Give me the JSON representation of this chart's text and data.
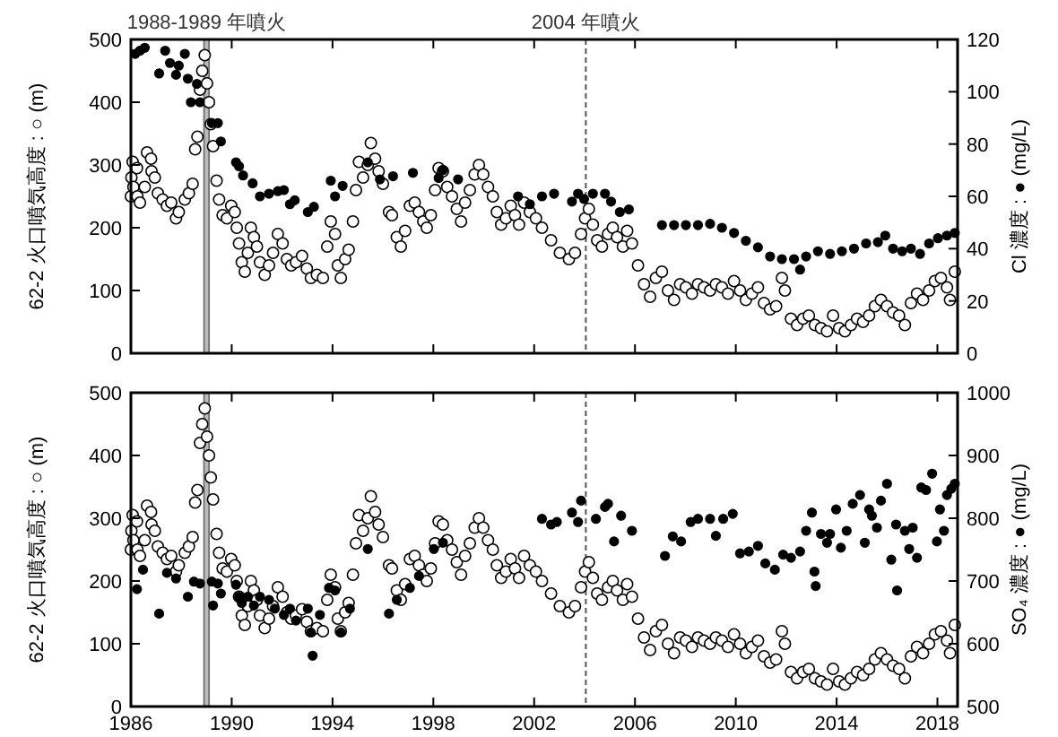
{
  "chart_data": [
    {
      "type": "scatter",
      "ylabel": "62-2 火口噴気高度 : ○ (m)",
      "y2label": "Cl 濃度 : ● (mg/L)",
      "xlim": [
        1986,
        2018.8
      ],
      "xticks": [
        1986,
        1990,
        1994,
        1998,
        2002,
        2006,
        2010,
        2014,
        2018
      ],
      "ylim": [
        0,
        500
      ],
      "yticks": [
        0,
        100,
        200,
        300,
        400,
        500
      ],
      "y2lim": [
        0,
        120
      ],
      "y2ticks": [
        0,
        20,
        40,
        60,
        80,
        100,
        120
      ],
      "tick_labels": "y",
      "marker": "circle",
      "bands": [
        {
          "axis": "x",
          "from": 1988.9,
          "to": 1989.1,
          "label": "1988-1989 年噴火",
          "color": "#bbbbbb"
        }
      ],
      "ref_lines": [
        {
          "axis": "x",
          "value": 2004.05,
          "label": "2004 年噴火",
          "line_style": "dashed",
          "color": "#555555"
        }
      ],
      "series": [
        {
          "color": "#ffffff",
          "x": [
            1986.0,
            1986.02,
            1986.07,
            1986.1,
            1986.24,
            1986.26,
            1986.36,
            1986.55,
            1986.64,
            1986.8,
            1986.82,
            1986.95,
            1987.07,
            1987.26,
            1987.43,
            1987.6,
            1987.79,
            1987.9,
            1988.14,
            1988.3,
            1988.45,
            1988.55,
            1988.64,
            1988.74,
            1988.83,
            1988.93,
            1989.02,
            1989.1,
            1989.17,
            1989.26,
            1989.4,
            1989.5,
            1989.64,
            1989.81,
            1989.98,
            1990.12,
            1990.2,
            1990.29,
            1990.4,
            1990.52,
            1990.64,
            1990.76,
            1990.88,
            1991.0,
            1991.12,
            1991.31,
            1991.48,
            1991.64,
            1991.83,
            1992.02,
            1992.19,
            1992.36,
            1992.55,
            1992.79,
            1992.98,
            1993.14,
            1993.38,
            1993.62,
            1993.79,
            1993.93,
            1994.1,
            1994.21,
            1994.33,
            1994.5,
            1994.64,
            1994.81,
            1994.93,
            1995.05,
            1995.21,
            1995.4,
            1995.52,
            1995.69,
            1995.83,
            1996.0,
            1996.24,
            1996.36,
            1996.55,
            1996.71,
            1996.88,
            1997.07,
            1997.26,
            1997.43,
            1997.6,
            1997.74,
            1997.9,
            1998.07,
            1998.21,
            1998.38,
            1998.55,
            1998.74,
            1998.93,
            1999.1,
            1999.26,
            1999.45,
            1999.64,
            1999.81,
            1999.98,
            2000.17,
            2000.36,
            2000.52,
            2000.69,
            2000.88,
            2001.07,
            2001.24,
            2001.4,
            2001.6,
            2001.83,
            2002.07,
            2002.31,
            2002.67,
            2003.02,
            2003.38,
            2003.62,
            2003.86,
            2004.02,
            2004.17,
            2004.33,
            2004.5,
            2004.69,
            2004.93,
            2005.12,
            2005.29,
            2005.52,
            2005.69,
            2005.88,
            2006.12,
            2006.36,
            2006.6,
            2006.83,
            2007.07,
            2007.31,
            2007.55,
            2007.79,
            2008.02,
            2008.26,
            2008.5,
            2008.74,
            2008.98,
            2009.21,
            2009.45,
            2009.69,
            2009.93,
            2010.17,
            2010.4,
            2010.64,
            2010.88,
            2011.12,
            2011.36,
            2011.6,
            2011.83,
            2011.95,
            2012.19,
            2012.43,
            2012.67,
            2012.9,
            2013.14,
            2013.38,
            2013.62,
            2013.86,
            2014.1,
            2014.33,
            2014.57,
            2014.81,
            2015.05,
            2015.29,
            2015.52,
            2015.76,
            2016.0,
            2016.24,
            2016.48,
            2016.71,
            2016.95,
            2017.19,
            2017.43,
            2017.67,
            2017.9,
            2018.14,
            2018.38,
            2018.5,
            2018.69
          ],
          "values": [
            250,
            280,
            305,
            265,
            295,
            250,
            240,
            265,
            320,
            310,
            290,
            280,
            255,
            245,
            235,
            240,
            215,
            225,
            245,
            255,
            270,
            325,
            345,
            420,
            450,
            475,
            430,
            400,
            365,
            330,
            275,
            245,
            220,
            215,
            235,
            225,
            200,
            175,
            145,
            130,
            160,
            200,
            185,
            170,
            145,
            125,
            140,
            160,
            190,
            175,
            150,
            140,
            145,
            155,
            135,
            120,
            125,
            120,
            170,
            210,
            190,
            140,
            120,
            150,
            165,
            210,
            260,
            305,
            280,
            300,
            335,
            310,
            290,
            270,
            225,
            220,
            185,
            170,
            195,
            235,
            240,
            225,
            210,
            200,
            220,
            260,
            295,
            290,
            265,
            250,
            230,
            210,
            240,
            260,
            285,
            300,
            285,
            265,
            250,
            225,
            205,
            215,
            235,
            220,
            205,
            240,
            225,
            215,
            200,
            180,
            160,
            150,
            160,
            190,
            215,
            230,
            205,
            180,
            170,
            190,
            200,
            185,
            170,
            195,
            175,
            140,
            110,
            90,
            120,
            130,
            100,
            85,
            110,
            105,
            95,
            110,
            105,
            100,
            110,
            105,
            95,
            115,
            100,
            85,
            95,
            105,
            80,
            70,
            75,
            120,
            100,
            55,
            45,
            55,
            60,
            45,
            40,
            35,
            60,
            40,
            35,
            45,
            55,
            50,
            60,
            75,
            85,
            75,
            65,
            60,
            45,
            80,
            95,
            85,
            100,
            115,
            120,
            105,
            85,
            130
          ]
        },
        {
          "color": "#000000",
          "axis": "y2",
          "x": [
            1986.17,
            1986.36,
            1986.55,
            1987.12,
            1987.36,
            1987.55,
            1987.79,
            1987.9,
            1988.14,
            1988.26,
            1988.38,
            1988.62,
            1988.74,
            1989.21,
            1989.45,
            1989.57,
            1990.17,
            1990.29,
            1990.45,
            1990.83,
            1991.12,
            1991.48,
            1991.83,
            1992.07,
            1992.31,
            1992.5,
            1993.02,
            1993.26,
            1993.93,
            1994.1,
            1994.4,
            1995.4,
            1995.88,
            1996.4,
            1997.19,
            1998.21,
            1998.38,
            1998.98,
            2001.36,
            2001.83,
            2002.31,
            2002.79,
            2003.5,
            2003.74,
            2003.98,
            2004.33,
            2004.81,
            2005.05,
            2005.4,
            2005.76,
            2007.07,
            2007.55,
            2008.02,
            2008.5,
            2008.98,
            2009.45,
            2009.93,
            2010.4,
            2010.88,
            2011.36,
            2011.83,
            2012.31,
            2012.55,
            2012.79,
            2013.26,
            2013.74,
            2014.21,
            2014.69,
            2015.17,
            2015.64,
            2015.93,
            2016.24,
            2016.6,
            2016.95,
            2017.31,
            2017.67,
            2018.02,
            2018.38,
            2018.69
          ],
          "values": [
            114.5,
            115.7,
            116.8,
            107,
            115.7,
            111,
            106.5,
            110,
            114.5,
            105,
            96,
            103,
            96,
            88,
            88,
            81,
            73,
            71.5,
            68,
            65,
            60,
            61,
            62,
            62.4,
            57,
            58.5,
            54,
            56,
            66,
            60,
            64,
            73,
            66.5,
            67.7,
            69,
            67,
            70,
            66.5,
            60,
            57,
            60,
            61,
            58,
            61,
            59,
            61,
            61,
            58,
            54,
            55,
            49,
            49,
            49,
            49,
            49.5,
            48,
            46,
            43,
            40.5,
            37,
            36,
            36,
            32,
            37,
            39,
            38,
            39,
            40,
            42,
            42.5,
            45,
            40,
            39,
            40,
            38,
            42,
            44,
            45,
            46
          ]
        }
      ]
    },
    {
      "type": "scatter",
      "ylabel": "62-2 火口噴気高度 : ○ (m)",
      "y2label": "SO₄ 濃度 : ● (mg/L)",
      "xlim": [
        1986,
        2018.8
      ],
      "xticks": [
        1986,
        1990,
        1994,
        1998,
        2002,
        2006,
        2010,
        2014,
        2018
      ],
      "ylim": [
        0,
        500
      ],
      "yticks": [
        0,
        100,
        200,
        300,
        400,
        500
      ],
      "y2lim": [
        500,
        1000
      ],
      "y2ticks": [
        500,
        600,
        700,
        800,
        900,
        1000
      ],
      "marker": "circle",
      "bands": [
        {
          "axis": "x",
          "from": 1988.9,
          "to": 1989.1,
          "color": "#bbbbbb"
        }
      ],
      "ref_lines": [
        {
          "axis": "x",
          "value": 2004.05,
          "line_style": "dashed",
          "color": "#555555"
        }
      ],
      "series": [
        {
          "color": "#ffffff",
          "x": [
            1986.0,
            1986.02,
            1986.07,
            1986.1,
            1986.24,
            1986.26,
            1986.36,
            1986.55,
            1986.64,
            1986.8,
            1986.82,
            1986.95,
            1987.07,
            1987.26,
            1987.43,
            1987.6,
            1987.79,
            1987.9,
            1988.14,
            1988.3,
            1988.45,
            1988.55,
            1988.64,
            1988.74,
            1988.83,
            1988.93,
            1989.02,
            1989.1,
            1989.17,
            1989.26,
            1989.4,
            1989.5,
            1989.64,
            1989.81,
            1989.98,
            1990.12,
            1990.2,
            1990.29,
            1990.4,
            1990.52,
            1990.64,
            1990.76,
            1990.88,
            1991.0,
            1991.12,
            1991.31,
            1991.48,
            1991.64,
            1991.83,
            1992.02,
            1992.19,
            1992.36,
            1992.55,
            1992.79,
            1992.98,
            1993.14,
            1993.38,
            1993.62,
            1993.79,
            1993.93,
            1994.1,
            1994.21,
            1994.33,
            1994.5,
            1994.64,
            1994.81,
            1994.93,
            1995.05,
            1995.21,
            1995.4,
            1995.52,
            1995.69,
            1995.83,
            1996.0,
            1996.24,
            1996.36,
            1996.55,
            1996.71,
            1996.88,
            1997.07,
            1997.26,
            1997.43,
            1997.6,
            1997.74,
            1997.9,
            1998.07,
            1998.21,
            1998.38,
            1998.55,
            1998.74,
            1998.93,
            1999.1,
            1999.26,
            1999.45,
            1999.64,
            1999.81,
            1999.98,
            2000.17,
            2000.36,
            2000.52,
            2000.69,
            2000.88,
            2001.07,
            2001.24,
            2001.4,
            2001.6,
            2001.83,
            2002.07,
            2002.31,
            2002.67,
            2003.02,
            2003.38,
            2003.62,
            2003.86,
            2004.02,
            2004.17,
            2004.33,
            2004.5,
            2004.69,
            2004.93,
            2005.12,
            2005.29,
            2005.52,
            2005.69,
            2005.88,
            2006.12,
            2006.36,
            2006.6,
            2006.83,
            2007.07,
            2007.31,
            2007.55,
            2007.79,
            2008.02,
            2008.26,
            2008.5,
            2008.74,
            2008.98,
            2009.21,
            2009.45,
            2009.69,
            2009.93,
            2010.17,
            2010.4,
            2010.64,
            2010.88,
            2011.12,
            2011.36,
            2011.6,
            2011.83,
            2011.95,
            2012.19,
            2012.43,
            2012.67,
            2012.9,
            2013.14,
            2013.38,
            2013.62,
            2013.86,
            2014.1,
            2014.33,
            2014.57,
            2014.81,
            2015.05,
            2015.29,
            2015.52,
            2015.76,
            2016.0,
            2016.24,
            2016.48,
            2016.71,
            2016.95,
            2017.19,
            2017.43,
            2017.67,
            2017.9,
            2018.14,
            2018.38,
            2018.5,
            2018.69
          ],
          "values": [
            250,
            280,
            305,
            265,
            295,
            250,
            240,
            265,
            320,
            310,
            290,
            280,
            255,
            245,
            235,
            240,
            215,
            225,
            245,
            255,
            270,
            325,
            345,
            420,
            450,
            475,
            430,
            400,
            365,
            330,
            275,
            245,
            220,
            215,
            235,
            225,
            200,
            175,
            145,
            130,
            160,
            200,
            185,
            170,
            145,
            125,
            140,
            160,
            190,
            175,
            150,
            140,
            145,
            155,
            135,
            120,
            125,
            120,
            170,
            210,
            190,
            140,
            120,
            150,
            165,
            210,
            260,
            305,
            280,
            300,
            335,
            310,
            290,
            270,
            225,
            220,
            185,
            170,
            195,
            235,
            240,
            225,
            210,
            200,
            220,
            260,
            295,
            290,
            265,
            250,
            230,
            210,
            240,
            260,
            285,
            300,
            285,
            265,
            250,
            225,
            205,
            215,
            235,
            220,
            205,
            240,
            225,
            215,
            200,
            180,
            160,
            150,
            160,
            190,
            215,
            230,
            205,
            180,
            170,
            190,
            200,
            185,
            170,
            195,
            175,
            140,
            110,
            90,
            120,
            130,
            100,
            85,
            110,
            105,
            95,
            110,
            105,
            100,
            110,
            105,
            95,
            115,
            100,
            85,
            95,
            105,
            80,
            70,
            75,
            120,
            100,
            55,
            45,
            55,
            60,
            45,
            40,
            35,
            60,
            40,
            35,
            45,
            55,
            50,
            60,
            75,
            85,
            75,
            65,
            60,
            45,
            80,
            95,
            85,
            100,
            115,
            120,
            105,
            85,
            130
          ]
        },
        {
          "color": "#000000",
          "axis": "y2",
          "x": [
            1986.24,
            1986.48,
            1987.12,
            1987.43,
            1987.79,
            1988.26,
            1988.5,
            1988.74,
            1989.21,
            1989.26,
            1989.45,
            1989.57,
            1990.17,
            1990.29,
            1990.4,
            1990.64,
            1990.88,
            1991.12,
            1991.48,
            1991.71,
            1992.07,
            1992.31,
            1992.55,
            1993.02,
            1993.14,
            1993.21,
            1993.5,
            1993.86,
            1994.1,
            1994.33,
            1994.69,
            1995.4,
            1996.24,
            1996.55,
            1997.07,
            1997.43,
            1998.02,
            1998.38,
            2002.31,
            2002.67,
            2002.9,
            2003.5,
            2003.74,
            2003.86,
            2004.45,
            2004.81,
            2004.93,
            2005.17,
            2005.45,
            2005.88,
            2007.19,
            2007.5,
            2007.83,
            2008.21,
            2008.5,
            2008.98,
            2009.21,
            2009.5,
            2009.88,
            2010.17,
            2010.52,
            2010.88,
            2011.17,
            2011.55,
            2011.88,
            2012.19,
            2012.55,
            2012.79,
            2013.02,
            2013.12,
            2013.17,
            2013.38,
            2013.62,
            2013.74,
            2013.98,
            2014.17,
            2014.4,
            2014.64,
            2014.93,
            2015.12,
            2015.29,
            2015.4,
            2015.6,
            2015.76,
            2016.0,
            2016.17,
            2016.36,
            2016.4,
            2016.71,
            2016.88,
            2017.02,
            2017.19,
            2017.36,
            2017.55,
            2017.79,
            2017.98,
            2018.1,
            2018.26,
            2018.38,
            2018.55,
            2018.69
          ],
          "values": [
            687,
            718,
            648,
            713,
            704,
            675,
            699,
            696,
            699,
            661,
            696,
            680,
            694,
            675,
            665,
            675,
            661,
            675,
            670,
            656,
            646,
            656,
            637,
            656,
            618,
            581,
            646,
            689,
            685,
            618,
            656,
            751,
            648,
            670,
            689,
            708,
            751,
            761,
            799,
            790,
            794,
            809,
            794,
            828,
            799,
            818,
            823,
            763,
            804,
            780,
            740,
            771,
            763,
            794,
            799,
            799,
            772,
            799,
            807,
            744,
            747,
            756,
            728,
            718,
            742,
            737,
            747,
            780,
            809,
            715,
            692,
            775,
            761,
            775,
            814,
            753,
            780,
            823,
            837,
            761,
            814,
            804,
            785,
            828,
            855,
            734,
            790,
            685,
            780,
            751,
            785,
            737,
            849,
            845,
            871,
            763,
            814,
            780,
            837,
            847,
            855
          ]
        }
      ]
    }
  ]
}
